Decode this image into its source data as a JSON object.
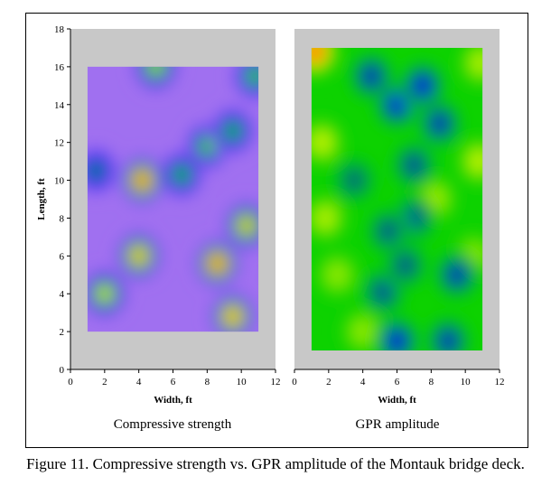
{
  "figure_caption": "Figure 11. Compressive strength vs. GPR amplitude of the Montauk bridge deck.",
  "chart_data": [
    {
      "type": "heatmap",
      "title": "Compressive strength",
      "xlabel": "Width, ft",
      "ylabel": "Length, ft",
      "xlim": [
        0,
        12
      ],
      "ylim": [
        0,
        18
      ],
      "xticks": [
        0,
        2,
        4,
        6,
        8,
        10,
        12
      ],
      "yticks": [
        0,
        2,
        4,
        6,
        8,
        10,
        12,
        14,
        16,
        18
      ],
      "data_extent": {
        "x": [
          1,
          11
        ],
        "y": [
          2,
          16
        ]
      },
      "background": "#c8c8c8",
      "colormap": [
        "#a070f0",
        "#0000ff",
        "#00d000",
        "#ffff00",
        "#ff0000"
      ],
      "hotspots": [
        {
          "x": 4.2,
          "y": 10.0,
          "level": 1.0
        },
        {
          "x": 8.6,
          "y": 5.6,
          "level": 1.0
        },
        {
          "x": 9.5,
          "y": 2.8,
          "level": 0.95
        },
        {
          "x": 10.3,
          "y": 7.6,
          "level": 0.85
        },
        {
          "x": 4.0,
          "y": 6.0,
          "level": 0.9
        },
        {
          "x": 2.0,
          "y": 4.0,
          "level": 0.75
        },
        {
          "x": 5.0,
          "y": 16.0,
          "level": 0.7
        },
        {
          "x": 10.8,
          "y": 15.5,
          "level": 0.6
        },
        {
          "x": 8.0,
          "y": 11.8,
          "level": 0.6
        },
        {
          "x": 6.5,
          "y": 10.3,
          "level": 0.55
        },
        {
          "x": 9.5,
          "y": 12.6,
          "level": 0.55
        },
        {
          "x": 1.5,
          "y": 10.5,
          "level": 0.45
        }
      ]
    },
    {
      "type": "heatmap",
      "title": "GPR amplitude",
      "xlabel": "Width, ft",
      "ylabel": "",
      "xlim": [
        0,
        12
      ],
      "ylim": [
        0,
        18
      ],
      "xticks": [
        0,
        2,
        4,
        6,
        8,
        10,
        12
      ],
      "data_extent": {
        "x": [
          1,
          11
        ],
        "y": [
          1,
          17
        ]
      },
      "background": "#c8c8c8",
      "colormap": [
        "#0000ff",
        "#00d000",
        "#ffff00",
        "#ff0000"
      ],
      "base_level": 0.35,
      "hotspots": [
        {
          "x": 1.2,
          "y": 16.8,
          "level": 1.0
        },
        {
          "x": 1.6,
          "y": 12.0,
          "level": 0.62
        },
        {
          "x": 1.8,
          "y": 8.0,
          "level": 0.6
        },
        {
          "x": 2.5,
          "y": 5.0,
          "level": 0.55
        },
        {
          "x": 10.9,
          "y": 16.2,
          "level": 0.6
        },
        {
          "x": 10.8,
          "y": 11.0,
          "level": 0.62
        },
        {
          "x": 8.2,
          "y": 9.0,
          "level": 0.58
        },
        {
          "x": 10.5,
          "y": 6.0,
          "level": 0.55
        },
        {
          "x": 4.0,
          "y": 2.0,
          "level": 0.55
        },
        {
          "x": 6.0,
          "y": 14.0,
          "level": 0.0
        },
        {
          "x": 7.5,
          "y": 15.0,
          "level": 0.0
        },
        {
          "x": 4.5,
          "y": 15.5,
          "level": 0.05
        },
        {
          "x": 8.5,
          "y": 13.0,
          "level": 0.05
        },
        {
          "x": 7.0,
          "y": 10.8,
          "level": 0.1
        },
        {
          "x": 6.0,
          "y": 1.5,
          "level": 0.0
        },
        {
          "x": 9.0,
          "y": 1.5,
          "level": 0.05
        },
        {
          "x": 9.5,
          "y": 5.0,
          "level": 0.05
        },
        {
          "x": 7.0,
          "y": 8.0,
          "level": 0.1
        },
        {
          "x": 5.5,
          "y": 7.3,
          "level": 0.12
        },
        {
          "x": 5.2,
          "y": 4.1,
          "level": 0.1
        },
        {
          "x": 6.5,
          "y": 5.5,
          "level": 0.12
        },
        {
          "x": 3.5,
          "y": 10.0,
          "level": 0.15
        }
      ]
    }
  ]
}
